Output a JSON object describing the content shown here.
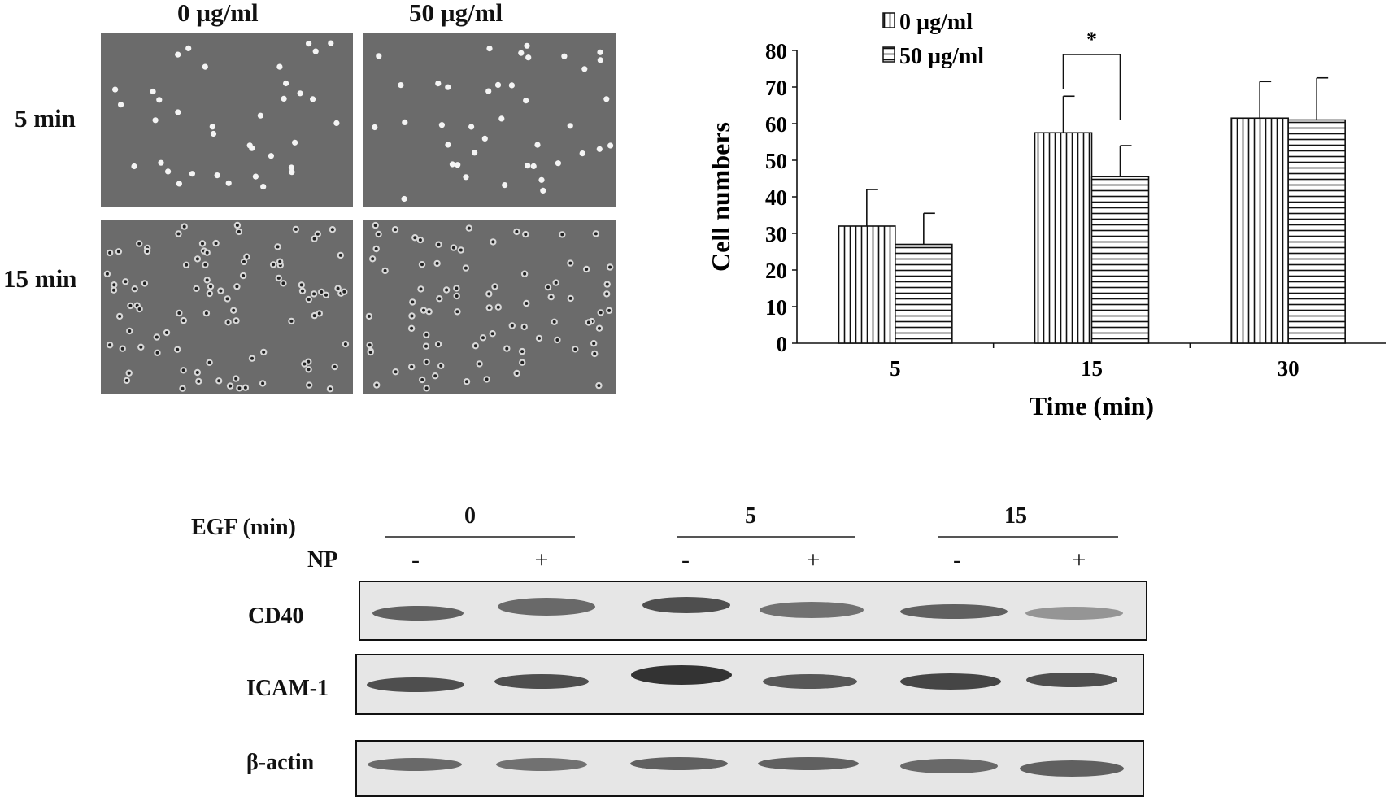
{
  "micrographs": {
    "columns": [
      "0 µg/ml",
      "50 µg/ml"
    ],
    "rows": [
      "5 min",
      "15 min"
    ]
  },
  "chart_data": {
    "type": "bar",
    "categories": [
      "5",
      "15",
      "30"
    ],
    "series": [
      {
        "name": "0 µg/ml",
        "values": [
          32,
          57.5,
          61.5
        ],
        "errors": [
          10,
          10,
          10
        ],
        "pattern": "vertical"
      },
      {
        "name": "50 µg/ml",
        "values": [
          27,
          45.5,
          61
        ],
        "errors": [
          8.5,
          8.5,
          11.5
        ],
        "pattern": "horizontal"
      }
    ],
    "xlabel": "Time (min)",
    "ylabel": "Cell numbers",
    "ylim": [
      0,
      80
    ],
    "yticks": [
      "0",
      "10",
      "20",
      "30",
      "40",
      "50",
      "60",
      "70",
      "80"
    ],
    "legend_position": "top-left",
    "annotation": {
      "text": "*",
      "category": "15"
    }
  },
  "western": {
    "egf_label": "EGF (min)",
    "np_label": "NP",
    "groups": [
      "0",
      "5",
      "15"
    ],
    "np_signs": [
      "-",
      "+",
      "-",
      "+",
      "-",
      "+"
    ],
    "blots": [
      {
        "label": "CD40"
      },
      {
        "label": "ICAM-1"
      },
      {
        "label": "β-actin"
      }
    ]
  }
}
